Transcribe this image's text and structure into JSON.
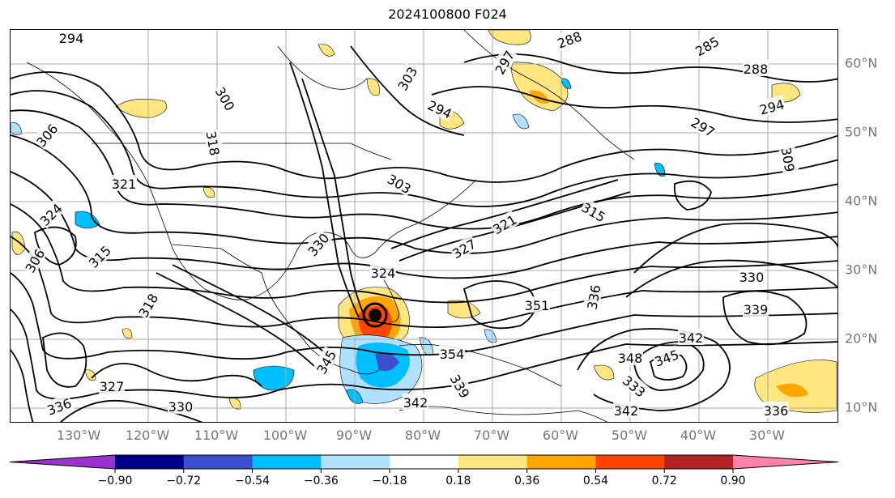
{
  "title": "2024100800 F024",
  "lon_labels": [
    "130°W",
    "120°W",
    "110°W",
    "100°W",
    "90°W",
    "80°W",
    "70°W",
    "60°W",
    "50°W",
    "40°W",
    "30°W"
  ],
  "lat_labels": [
    "60°N",
    "50°N",
    "40°N",
    "30°N",
    "20°N",
    "10°N"
  ],
  "contour_labels": [
    "294",
    "288",
    "297",
    "285",
    "288",
    "294",
    "303",
    "294",
    "300",
    "297",
    "306",
    "309",
    "303",
    "315",
    "318",
    "321",
    "324",
    "306",
    "315",
    "318",
    "321",
    "327",
    "330",
    "324",
    "330",
    "336",
    "339",
    "342",
    "345",
    "348",
    "351",
    "354",
    "345",
    "342",
    "339",
    "336",
    "327",
    "333",
    "330",
    "342",
    "336"
  ],
  "colorbar": {
    "ticks": [
      "−0.90",
      "−0.72",
      "−0.54",
      "−0.36",
      "−0.18",
      "0.18",
      "0.36",
      "0.54",
      "0.72",
      "0.90"
    ],
    "colors": [
      "#9a32cd",
      "#00008b",
      "#3b4fd0",
      "#00bfff",
      "#b0e2ff",
      "#ffffff",
      "#ffe680",
      "#ffa500",
      "#ff4500",
      "#b22222",
      "#ff82ab"
    ]
  },
  "colors": {
    "shade_pos_light": "#ffe680",
    "shade_pos_med": "#ffa500",
    "shade_pos_strong": "#ff4500",
    "shade_neg_light": "#b0e2ff",
    "shade_neg_med": "#00bfff",
    "shade_neg_strong": "#3b4fd0",
    "contour": "#000000",
    "grid": "#aaaaaa",
    "axis_label": "#777777"
  }
}
